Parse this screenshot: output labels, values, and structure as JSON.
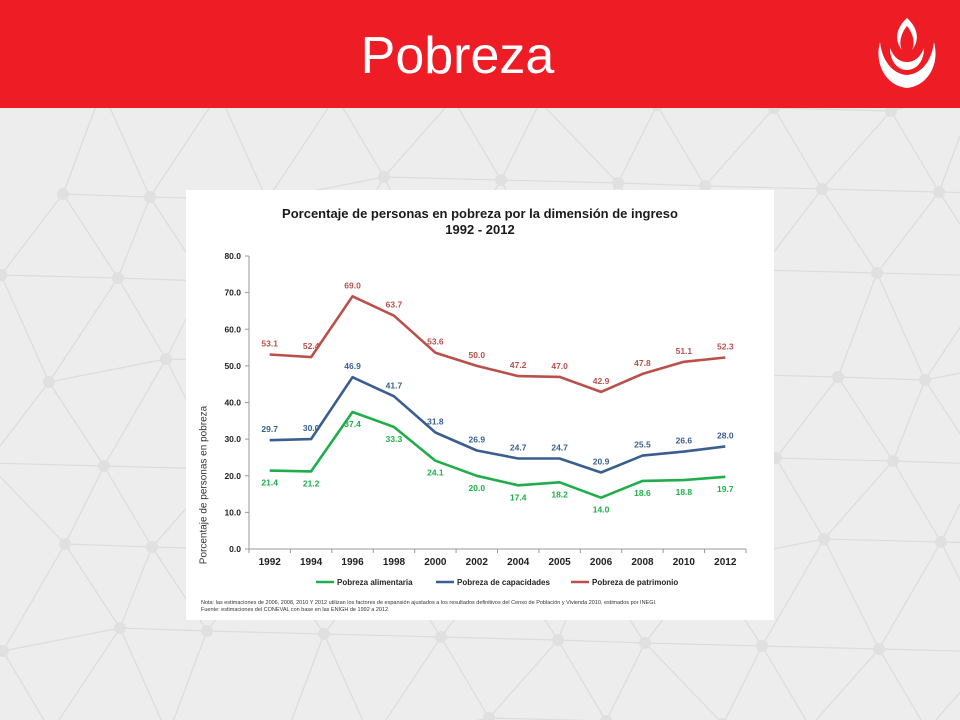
{
  "header": {
    "title": "Pobreza",
    "background_color": "#ee1c25",
    "logo_icon": "flame-logo-icon"
  },
  "chart_data": {
    "type": "line",
    "title": "Porcentaje de personas en pobreza por la dimensión de ingreso",
    "subtitle": "1992 - 2012",
    "xlabel": "",
    "ylabel": "Porcentaje de personas en pobreza",
    "ylim": [
      0,
      80
    ],
    "yticks": [
      "0.0",
      "10.0",
      "20.0",
      "30.0",
      "40.0",
      "50.0",
      "60.0",
      "70.0",
      "80.0"
    ],
    "grid": false,
    "legend_position": "bottom",
    "categories": [
      "1992",
      "1994",
      "1996",
      "1998",
      "2000",
      "2002",
      "2004",
      "2005",
      "2006",
      "2008",
      "2010",
      "2012"
    ],
    "series": [
      {
        "name": "Pobreza alimentaria",
        "color": "#1fae4b",
        "values": [
          21.4,
          21.2,
          37.4,
          33.3,
          24.1,
          20.0,
          17.4,
          18.2,
          14.0,
          18.6,
          18.8,
          19.7
        ],
        "labels": [
          "21.4",
          "21.2",
          "37.4",
          "33.3",
          "24.1",
          "20.0",
          "17.4",
          "18.2",
          "14.0",
          "18.6",
          "18.8",
          "19.7"
        ]
      },
      {
        "name": "Pobreza de capacidades",
        "color": "#3a5f8f",
        "values": [
          29.7,
          30.0,
          46.9,
          41.7,
          31.8,
          26.9,
          24.7,
          24.7,
          20.9,
          25.5,
          26.6,
          28.0
        ],
        "labels": [
          "29.7",
          "30.0",
          "46.9",
          "41.7",
          "31.8",
          "26.9",
          "24.7",
          "24.7",
          "20.9",
          "25.5",
          "26.6",
          "28.0"
        ]
      },
      {
        "name": "Pobreza de patrimonio",
        "color": "#b9504c",
        "values": [
          53.1,
          52.4,
          69.0,
          63.7,
          53.6,
          50.0,
          47.2,
          47.0,
          42.9,
          47.8,
          51.1,
          52.3
        ],
        "labels": [
          "53.1",
          "52.4",
          "69.0",
          "63.7",
          "53.6",
          "50.0",
          "47.2",
          "47.0",
          "42.9",
          "47.8",
          "51.1",
          "52.3"
        ]
      }
    ],
    "notes": [
      "Nota: las estimaciones de 2006, 2008, 2010 Y 2012 utilizan los factores de expansión ajustados a los resultados definitivos del Censo de Población y Vivienda 2010, estimados por INEGI.",
      "Fuente: estimaciones del CONEVAL con base en las ENIGH de 1992 a 2012."
    ]
  }
}
